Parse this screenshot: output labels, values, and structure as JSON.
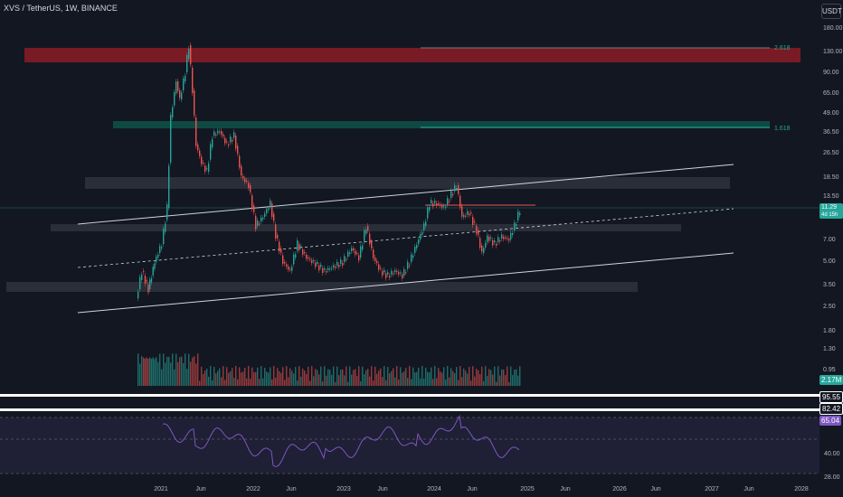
{
  "header": {
    "symbol_title": "XVS / TetherUS, 1W, BINANCE",
    "currency_button": "USDT"
  },
  "price_axis": {
    "ticks": [
      "180.00",
      "130.00",
      "90.00",
      "65.00",
      "49.00",
      "36.50",
      "26.50",
      "18.50",
      "13.50",
      "7.00",
      "5.00",
      "3.50",
      "2.50",
      "1.80",
      "1.30",
      "0.95"
    ]
  },
  "time_axis": {
    "ticks": [
      "2021",
      "Jun",
      "2022",
      "Jun",
      "2023",
      "Jun",
      "2024",
      "Jun",
      "2025",
      "Jun",
      "2026",
      "Jun",
      "2027",
      "Jun",
      "2028"
    ]
  },
  "price_tags": {
    "last_price": "11.29",
    "countdown": "4d 15h",
    "volume": "2.17M"
  },
  "rsi": {
    "ticks": [
      "40.00",
      "28.00"
    ],
    "values_labels": [
      "95.55",
      "82.42",
      "65.04"
    ],
    "line_color": "#7e57c2"
  },
  "fib_labels": [
    "2.618",
    "1.618"
  ],
  "colors": {
    "background": "#131722",
    "up": "#26a69a",
    "down": "#ef5350",
    "price_tag": "#26a69a",
    "zone_red": "#8b1c25",
    "zone_teal": "#0e4a43",
    "zone_gray": "#2a2e39"
  }
}
